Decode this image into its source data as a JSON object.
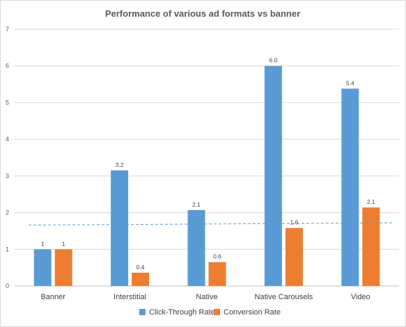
{
  "chart_data": {
    "type": "bar",
    "title": "Performance of various ad formats vs banner",
    "xlabel": "",
    "ylabel": "",
    "ylim": [
      0,
      7
    ],
    "yticks": [
      0,
      1,
      2,
      3,
      4,
      5,
      6,
      7
    ],
    "grid": true,
    "legend_position": "bottom",
    "categories": [
      "Banner",
      "Interstitial",
      "Native",
      "Native Carousels",
      "Video"
    ],
    "series": [
      {
        "name": "Click-Through Rate",
        "color": "#5b9bd5",
        "values": [
          1.0,
          3.15,
          2.07,
          6.0,
          5.38
        ],
        "labels": [
          "1",
          "3.2",
          "2.1",
          "6.0",
          "5.4"
        ]
      },
      {
        "name": "Conversion Rate",
        "color": "#ed7d31",
        "values": [
          1.0,
          0.36,
          0.65,
          1.58,
          2.14
        ],
        "labels": [
          "1",
          "0.4",
          "0.6",
          "1.6",
          "2.1"
        ]
      }
    ],
    "reference_line": {
      "style": "dashed",
      "color": "#5b9bd5",
      "y_start": 1.66,
      "y_end": 1.72
    }
  }
}
